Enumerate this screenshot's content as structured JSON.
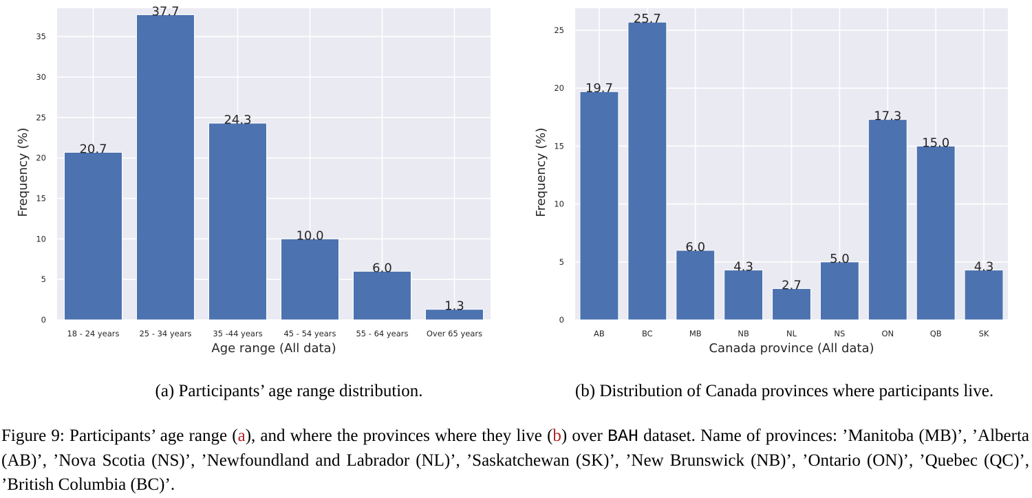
{
  "chart_data": [
    {
      "type": "bar",
      "categories": [
        "18 - 24 years",
        "25 - 34 years",
        "35 -44 years",
        "45 - 54 years",
        "55 - 64 years",
        "Over 65 years"
      ],
      "values": [
        20.7,
        37.7,
        24.3,
        10.0,
        6.0,
        1.3
      ],
      "value_labels": [
        "20.7",
        "37.7",
        "24.3",
        "10.0",
        "6.0",
        "1.3"
      ],
      "xlabel": "Age range (All data)",
      "ylabel": "Frequency (%)",
      "yticks": [
        0,
        5,
        10,
        15,
        20,
        25,
        30,
        35
      ],
      "ylim": [
        0,
        38.5
      ],
      "grid": true,
      "bar_color": "#4c72b0",
      "background_color": "#eaeaf2"
    },
    {
      "type": "bar",
      "categories": [
        "AB",
        "BC",
        "MB",
        "NB",
        "NL",
        "NS",
        "ON",
        "QB",
        "SK"
      ],
      "values": [
        19.7,
        25.7,
        6.0,
        4.3,
        2.7,
        5.0,
        17.3,
        15.0,
        4.3
      ],
      "value_labels": [
        "19.7",
        "25.7",
        "6.0",
        "4.3",
        "2.7",
        "5.0",
        "17.3",
        "15.0",
        "4.3"
      ],
      "xlabel": "Canada province (All data)",
      "ylabel": "Frequency (%)",
      "yticks": [
        0,
        5,
        10,
        15,
        20,
        25
      ],
      "ylim": [
        0,
        26.9
      ],
      "grid": true,
      "bar_color": "#4c72b0",
      "background_color": "#eaeaf2"
    }
  ],
  "captions": {
    "a": "(a) Participants’ age range distribution.",
    "b": "(b) Distribution of Canada provinces where participants live."
  },
  "figure_caption": {
    "part1": "Figure 9: Participants’ age range (",
    "ref_a": "a",
    "part2": "), and where the provinces where they live (",
    "ref_b": "b",
    "part3": ") over ",
    "dataset": "BAH",
    "part4": " dataset. Name of provinces: ’Manitoba (MB)’, ’Alberta (AB)’, ’Nova Scotia (NS)’, ’Newfoundland and Labrador (NL)’, ’Saskatchewan (SK)’, ’New Brunswick (NB)’, ’Ontario (ON)’, ’Quebec (QC)’, ’British Columbia (BC)’."
  }
}
